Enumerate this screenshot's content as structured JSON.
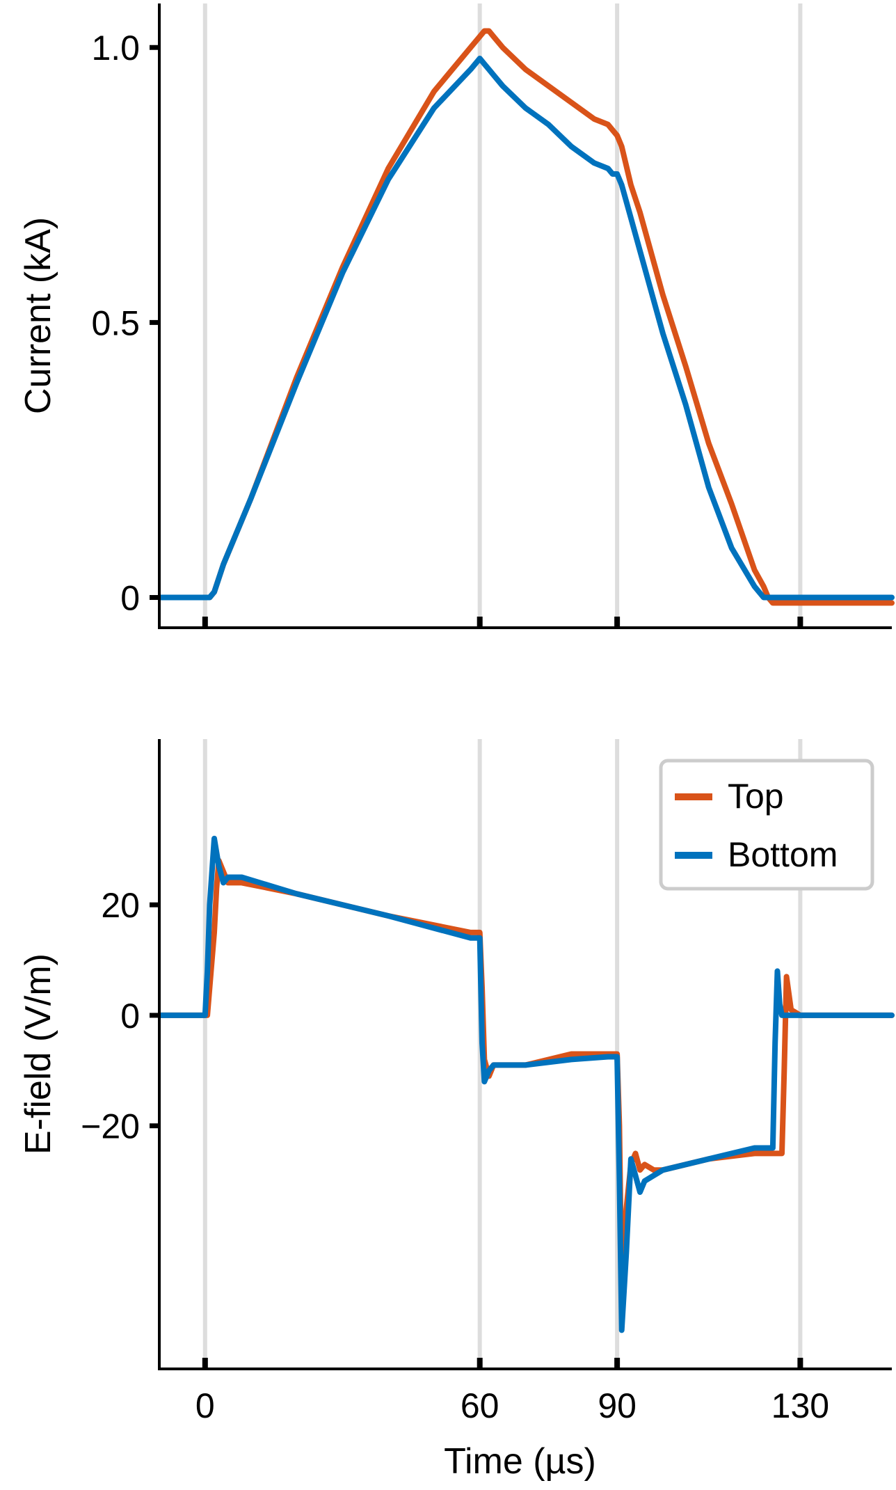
{
  "chart_data": [
    {
      "type": "line",
      "title": "",
      "xlabel": "",
      "ylabel": "Current (kA)",
      "xlim": [
        -10,
        150
      ],
      "ylim": [
        -0.055,
        1.08
      ],
      "xticks": [
        0,
        60,
        90,
        130
      ],
      "yticks": [
        0,
        0.5,
        1.0
      ],
      "ytick_labels": [
        "0",
        "0.5",
        "1.0"
      ],
      "vlines": [
        0,
        60,
        90,
        130
      ],
      "grid": false,
      "legend": "none",
      "series": [
        {
          "name": "Top",
          "color": "#d95319",
          "x": [
            -10,
            0,
            1,
            2,
            4,
            10,
            20,
            30,
            40,
            50,
            58,
            60,
            61,
            62,
            63,
            65,
            70,
            75,
            80,
            85,
            88,
            89,
            90,
            91,
            93,
            95,
            100,
            105,
            110,
            115,
            120,
            122,
            123,
            124,
            130,
            140,
            150
          ],
          "y": [
            0,
            0,
            0.0,
            0.01,
            0.06,
            0.18,
            0.4,
            0.6,
            0.78,
            0.92,
            1.0,
            1.02,
            1.03,
            1.03,
            1.02,
            1.0,
            0.96,
            0.93,
            0.9,
            0.87,
            0.86,
            0.85,
            0.84,
            0.82,
            0.75,
            0.7,
            0.55,
            0.42,
            0.28,
            0.17,
            0.05,
            0.02,
            0.0,
            -0.01,
            -0.01,
            -0.01,
            -0.01
          ]
        },
        {
          "name": "Bottom",
          "color": "#0072bd",
          "x": [
            -10,
            0,
            1,
            2,
            4,
            10,
            20,
            30,
            40,
            50,
            58,
            60,
            61,
            62,
            63,
            65,
            70,
            75,
            80,
            85,
            88,
            89,
            90,
            91,
            93,
            95,
            100,
            105,
            110,
            115,
            120,
            122,
            123,
            124,
            130,
            140,
            150
          ],
          "y": [
            0,
            0,
            0.0,
            0.01,
            0.06,
            0.18,
            0.39,
            0.59,
            0.76,
            0.89,
            0.96,
            0.98,
            0.97,
            0.96,
            0.95,
            0.93,
            0.89,
            0.86,
            0.82,
            0.79,
            0.78,
            0.77,
            0.77,
            0.75,
            0.69,
            0.63,
            0.48,
            0.35,
            0.2,
            0.09,
            0.02,
            0.0,
            0.0,
            0.0,
            0.0,
            0.0,
            0.0
          ]
        }
      ]
    },
    {
      "type": "line",
      "title": "",
      "xlabel": "Time (µs)",
      "ylabel": "E-field (V/m)",
      "xlim": [
        -10,
        150
      ],
      "ylim": [
        -64,
        50
      ],
      "xticks": [
        0,
        60,
        90,
        130
      ],
      "xtick_labels": [
        "0",
        "60",
        "90",
        "130"
      ],
      "yticks": [
        -20,
        0,
        20
      ],
      "ytick_labels": [
        "−20",
        "0",
        "20"
      ],
      "vlines": [
        0,
        60,
        90,
        130
      ],
      "grid": false,
      "legend": "top-right",
      "series": [
        {
          "name": "Top",
          "color": "#d95319",
          "x": [
            -10,
            0,
            0.5,
            1,
            2,
            2.5,
            3,
            4,
            5,
            6,
            8,
            20,
            40,
            58,
            60,
            60.5,
            61,
            62,
            63,
            70,
            80,
            88,
            90,
            90.5,
            91,
            91.5,
            92,
            93,
            94,
            95,
            96,
            98,
            100,
            110,
            120,
            125,
            126,
            126.5,
            127,
            128,
            130,
            150
          ],
          "y": [
            0,
            0,
            0,
            5,
            15,
            23,
            28,
            26,
            24,
            24,
            24,
            22,
            18,
            15,
            15,
            5,
            -8,
            -11,
            -9,
            -9,
            -7,
            -7,
            -7,
            -20,
            -50,
            -42,
            -35,
            -27,
            -25,
            -28,
            -27,
            -28,
            -28,
            -26,
            -25,
            -25,
            -25,
            -10,
            7,
            1,
            0,
            0
          ]
        },
        {
          "name": "Bottom",
          "color": "#0072bd",
          "x": [
            -10,
            0,
            0.5,
            1,
            2,
            3,
            4,
            5,
            6,
            8,
            20,
            40,
            58,
            60,
            60.5,
            61,
            62,
            63,
            70,
            80,
            88,
            90,
            90.5,
            91,
            92,
            93,
            94,
            95,
            96,
            98,
            100,
            110,
            120,
            124,
            124.5,
            125,
            125.5,
            126,
            127,
            130,
            150
          ],
          "y": [
            0,
            0,
            8,
            20,
            32,
            27,
            24,
            25,
            25,
            25,
            22,
            18,
            14,
            14,
            -5,
            -12,
            -10,
            -9,
            -9,
            -8,
            -7.5,
            -7.5,
            -30,
            -57,
            -43,
            -26,
            -29,
            -32,
            -30,
            -29,
            -28,
            -26,
            -24,
            -24,
            -5,
            8,
            2,
            0,
            0,
            0,
            0
          ]
        }
      ]
    }
  ]
}
